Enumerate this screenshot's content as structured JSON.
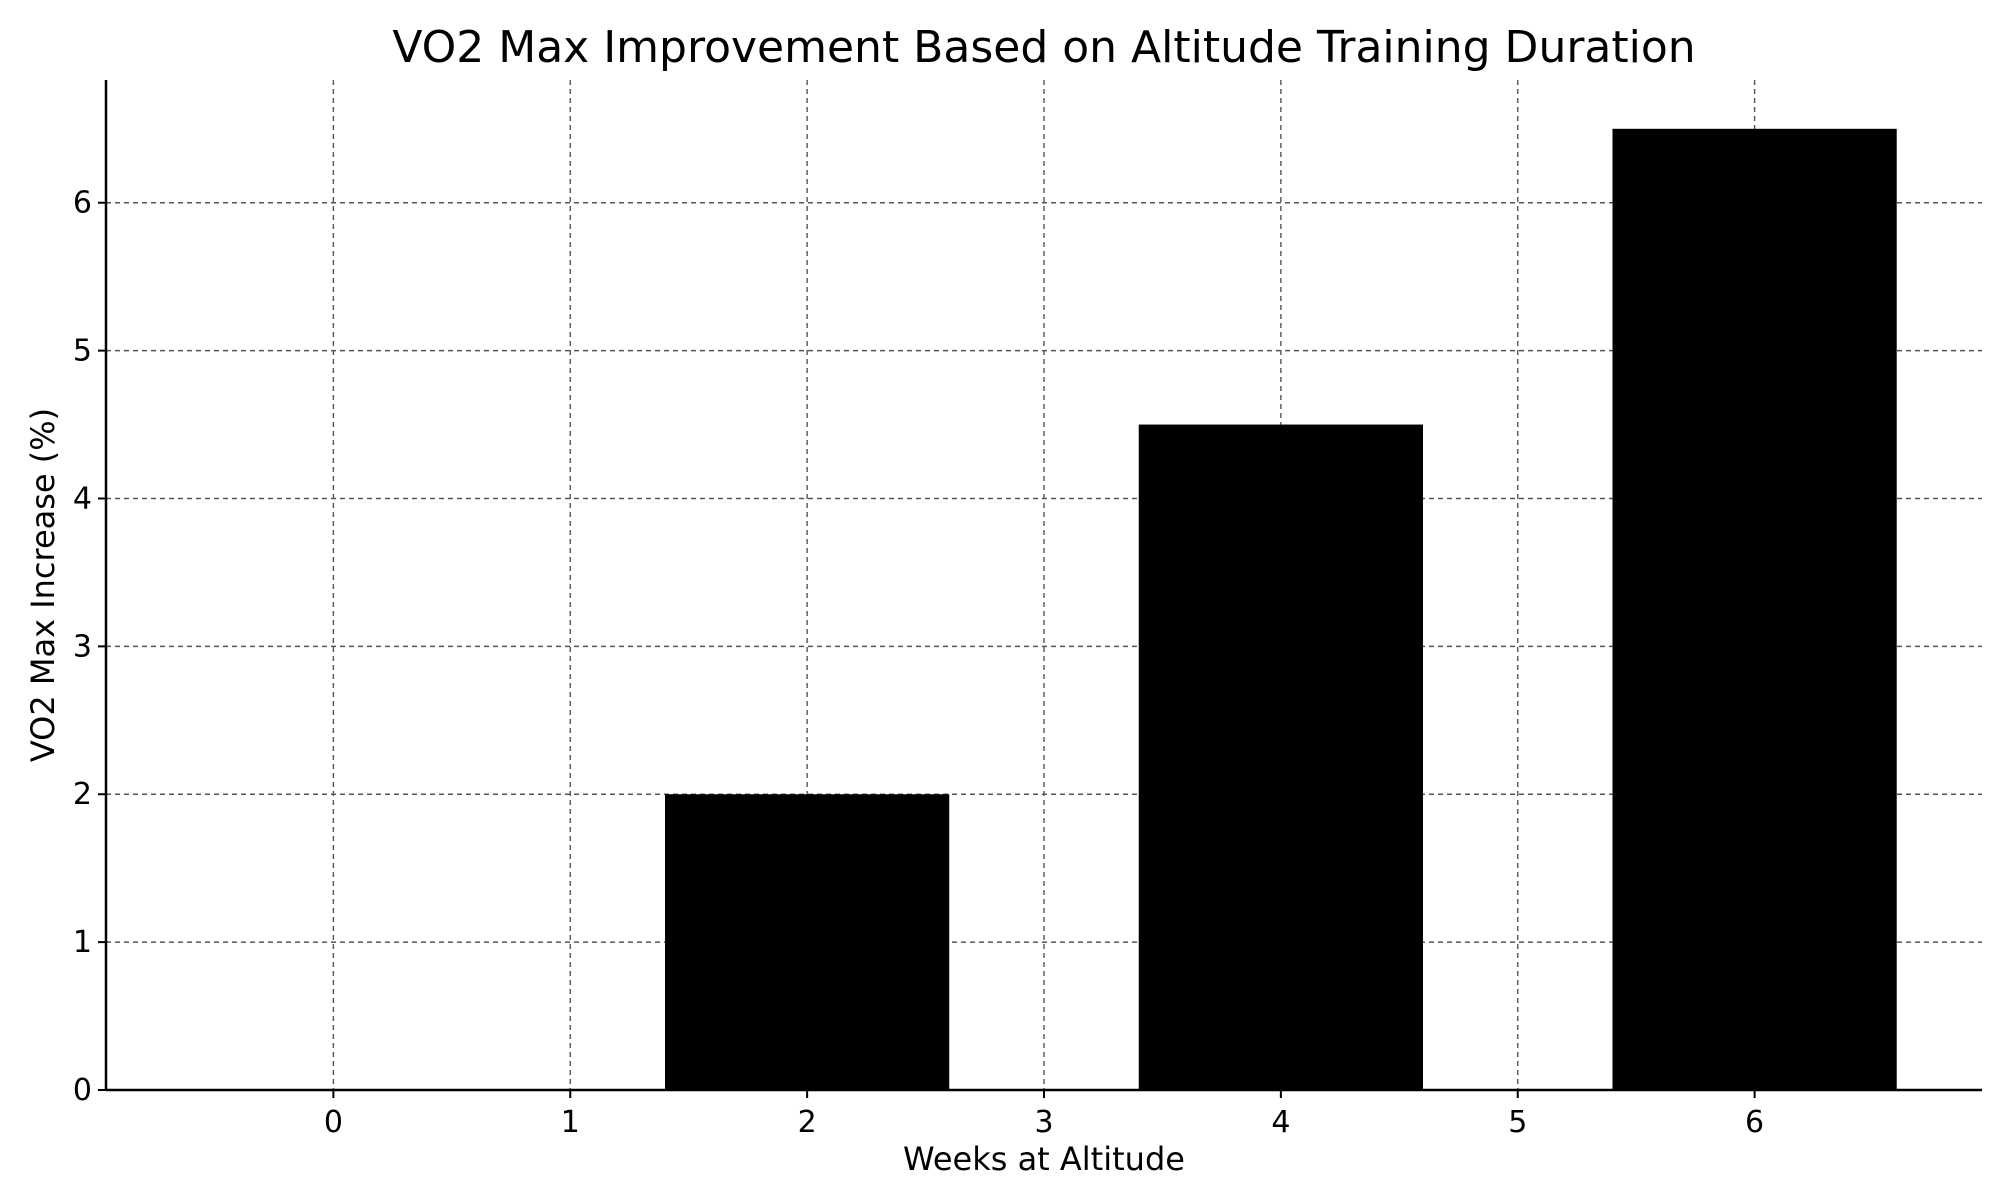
{
  "chart_data": {
    "type": "bar",
    "title": "VO2 Max Improvement Based on Altitude Training Duration",
    "xlabel": "Weeks at Altitude",
    "ylabel": "VO2 Max Increase (%)",
    "x": [
      0,
      1,
      2,
      3,
      4,
      5,
      6
    ],
    "bars": [
      {
        "x": 2,
        "value": 2.0
      },
      {
        "x": 4,
        "value": 4.5
      },
      {
        "x": 6,
        "value": 6.5
      }
    ],
    "bar_width": 1.2,
    "xticks": [
      0,
      1,
      2,
      3,
      4,
      5,
      6
    ],
    "yticks": [
      0,
      1,
      2,
      3,
      4,
      5,
      6
    ],
    "xlim": [
      -0.96,
      6.96
    ],
    "ylim": [
      0,
      6.83
    ],
    "grid": true,
    "bar_color": "#000000",
    "grid_color": "#555555"
  }
}
